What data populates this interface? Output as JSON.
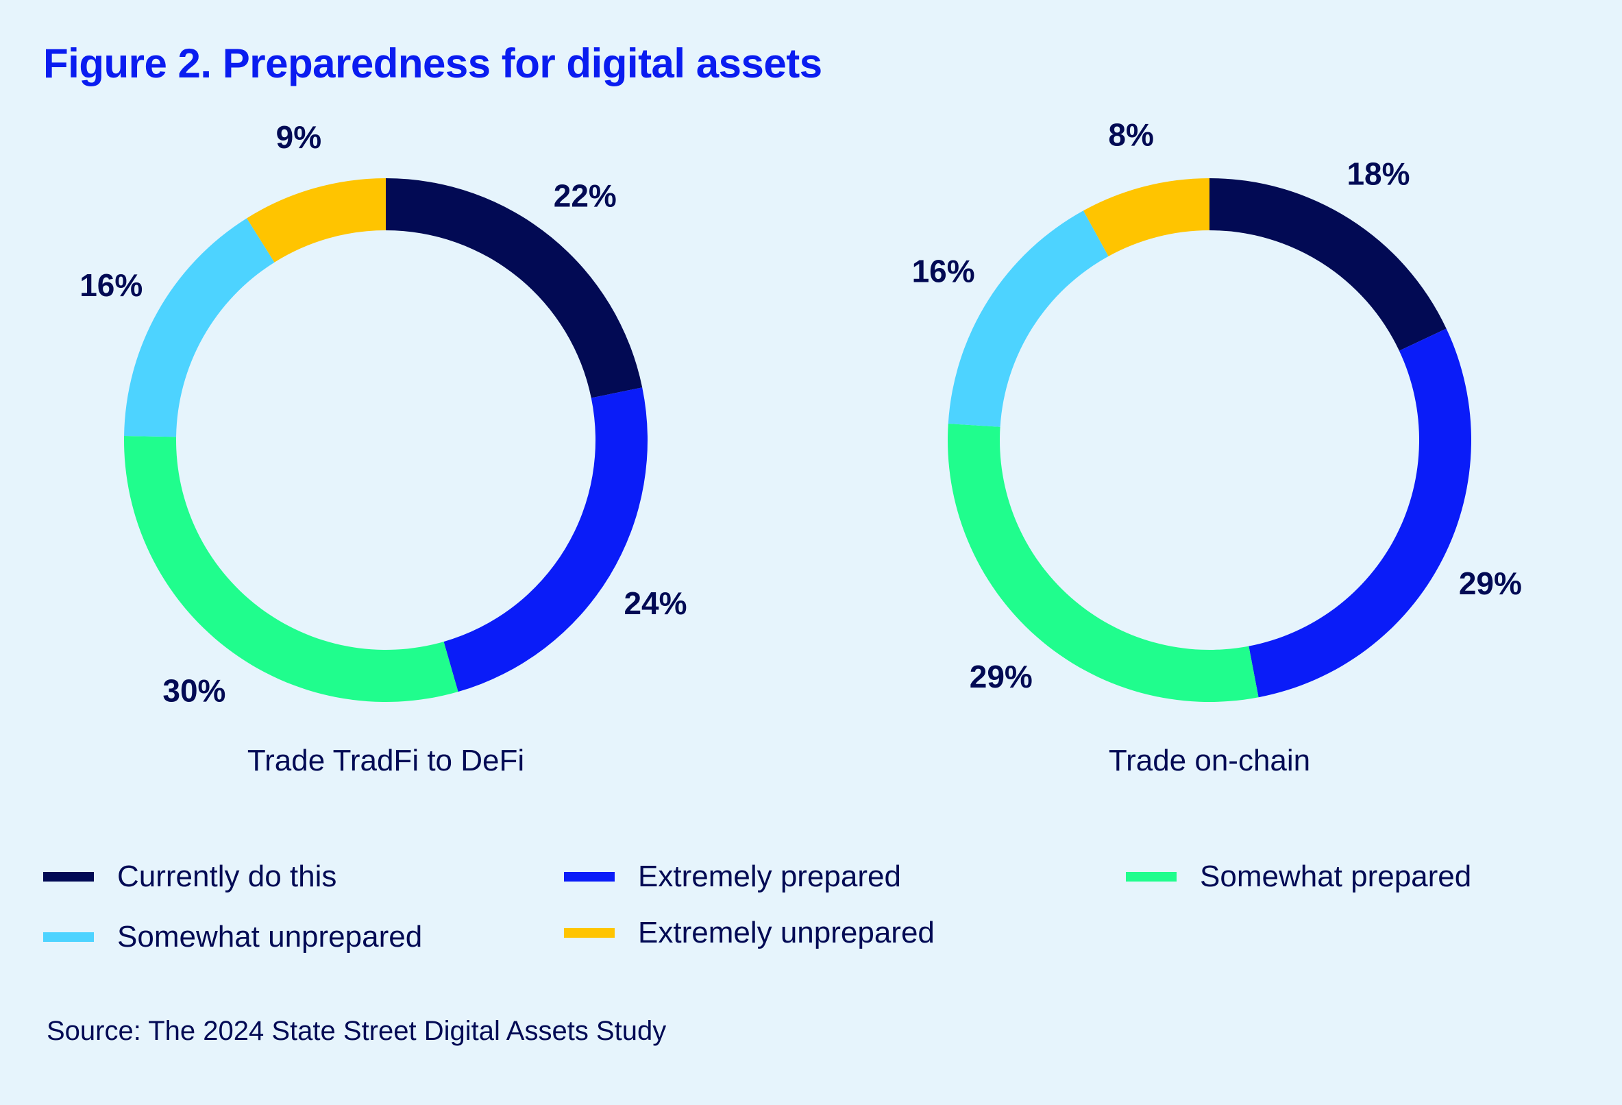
{
  "title": "Figure 2. Preparedness for digital assets",
  "source": "Source: The 2024 State Street Digital Assets Study",
  "colors": {
    "currently": "#020a54",
    "extremely_prepared": "#0a1cf8",
    "somewhat_prepared": "#20fd8d",
    "somewhat_unprepared": "#4dd3ff",
    "extremely_unprepared": "#ffc400"
  },
  "legend": [
    {
      "label": "Currently do this",
      "color": "#020a54"
    },
    {
      "label": "Extremely prepared",
      "color": "#0a1cf8"
    },
    {
      "label": "Somewhat prepared",
      "color": "#20fd8d"
    },
    {
      "label": "Somewhat unprepared",
      "color": "#4dd3ff"
    },
    {
      "label": "Extremely unprepared",
      "color": "#ffc400"
    }
  ],
  "chart_data": [
    {
      "type": "pie",
      "donut": true,
      "title": "Trade TradFi to DeFi",
      "categories": [
        "Currently do this",
        "Extremely prepared",
        "Somewhat prepared",
        "Somewhat unprepared",
        "Extremely unprepared"
      ],
      "values": [
        22,
        24,
        30,
        16,
        9
      ],
      "labels": [
        "22%",
        "24%",
        "30%",
        "16%",
        "9%"
      ],
      "colors": [
        "#020a54",
        "#0a1cf8",
        "#20fd8d",
        "#4dd3ff",
        "#ffc400"
      ],
      "start": "top",
      "direction": "clockwise"
    },
    {
      "type": "pie",
      "donut": true,
      "title": "Trade on-chain",
      "categories": [
        "Currently do this",
        "Extremely prepared",
        "Somewhat prepared",
        "Somewhat unprepared",
        "Extremely unprepared"
      ],
      "values": [
        18,
        29,
        29,
        16,
        8
      ],
      "labels": [
        "18%",
        "29%",
        "29%",
        "16%",
        "8%"
      ],
      "colors": [
        "#020a54",
        "#0a1cf8",
        "#20fd8d",
        "#4dd3ff",
        "#ffc400"
      ],
      "start": "top",
      "direction": "clockwise"
    }
  ]
}
